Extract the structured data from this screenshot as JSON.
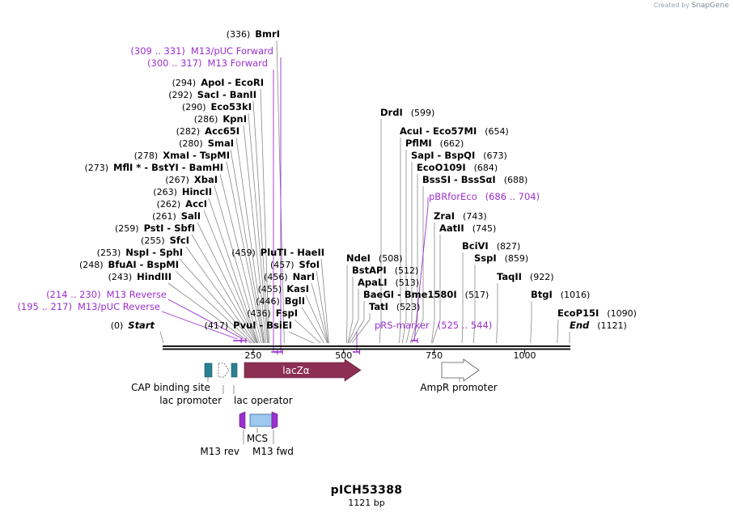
{
  "brand": {
    "created_by": "Created by",
    "name": "SnapGene"
  },
  "plasmid": {
    "name": "pICH53388",
    "length_label": "1121 bp",
    "length": 1121
  },
  "scale": {
    "ticks": [
      250,
      500,
      750,
      1000
    ],
    "tick_labels": [
      "250",
      "500",
      "750",
      "1000"
    ]
  },
  "sites": [
    {
      "id": "start",
      "name": "Start",
      "pos": "(0)",
      "loc": 0,
      "special": true
    },
    {
      "id": "pvui-bsiei",
      "name": "PvuI",
      "name2": "BsiEI",
      "pos": "(417)",
      "loc": 417
    },
    {
      "id": "fspi",
      "name": "FspI",
      "pos": "(436)",
      "loc": 436
    },
    {
      "id": "bgli",
      "name": "BglI",
      "pos": "(446)",
      "loc": 446
    },
    {
      "id": "kasi",
      "name": "KasI",
      "pos": "(455)",
      "loc": 455
    },
    {
      "id": "nari",
      "name": "NarI",
      "pos": "(456)",
      "loc": 456
    },
    {
      "id": "sfoi",
      "name": "SfoI",
      "pos": "(457)",
      "loc": 457
    },
    {
      "id": "plutI-haeii",
      "name": "PluTI",
      "name2": "HaeII",
      "pos": "(459)",
      "loc": 459
    },
    {
      "id": "hindiii",
      "name": "HindIII",
      "pos": "(243)",
      "loc": 243
    },
    {
      "id": "bfuai-bspmi",
      "name": "BfuAI",
      "name2": "BspMI",
      "pos": "(248)",
      "loc": 248
    },
    {
      "id": "nspi-sphi",
      "name": "NspI",
      "name2": "SphI",
      "pos": "(253)",
      "loc": 253
    },
    {
      "id": "sfci",
      "name": "SfcI",
      "pos": "(255)",
      "loc": 255
    },
    {
      "id": "psti-sbfi",
      "name": "PstI",
      "name2": "SbfI",
      "pos": "(259)",
      "loc": 259
    },
    {
      "id": "sali",
      "name": "SalI",
      "pos": "(261)",
      "loc": 261
    },
    {
      "id": "acci",
      "name": "AccI",
      "pos": "(262)",
      "loc": 262
    },
    {
      "id": "hincii",
      "name": "HincII",
      "pos": "(263)",
      "loc": 263
    },
    {
      "id": "xbai",
      "name": "XbaI",
      "pos": "(267)",
      "loc": 267
    },
    {
      "id": "mfli-bstyi-bamhi",
      "name": "MflI *",
      "name2": "BstYI",
      "name3": "BamHI",
      "pos": "(273)",
      "loc": 273
    },
    {
      "id": "xmai-tspmi",
      "name": "XmaI",
      "name2": "TspMI",
      "pos": "(278)",
      "loc": 278
    },
    {
      "id": "smai",
      "name": "SmaI",
      "pos": "(280)",
      "loc": 280
    },
    {
      "id": "acc65i",
      "name": "Acc65I",
      "pos": "(282)",
      "loc": 282
    },
    {
      "id": "kpni",
      "name": "KpnI",
      "pos": "(286)",
      "loc": 286
    },
    {
      "id": "eco53ki",
      "name": "Eco53kI",
      "pos": "(290)",
      "loc": 290
    },
    {
      "id": "saci-banii",
      "name": "SacI",
      "name2": "BanII",
      "pos": "(292)",
      "loc": 292
    },
    {
      "id": "apoi-ecori",
      "name": "ApoI",
      "name2": "EcoRI",
      "pos": "(294)",
      "loc": 294
    },
    {
      "id": "bmri",
      "name": "BmrI",
      "pos": "(336)",
      "loc": 336
    },
    {
      "id": "ndei",
      "name": "NdeI",
      "pos": "(508)",
      "loc": 508
    },
    {
      "id": "bstapi",
      "name": "BstAPI",
      "pos": "(512)",
      "loc": 512
    },
    {
      "id": "apali",
      "name": "ApaLI",
      "pos": "(513)",
      "loc": 513
    },
    {
      "id": "baegi-bme1580i",
      "name": "BaeGI",
      "name2": "Bme1580I",
      "pos": "(517)",
      "loc": 517
    },
    {
      "id": "tati",
      "name": "TatI",
      "pos": "(523)",
      "loc": 523
    },
    {
      "id": "drdi",
      "name": "DrdI",
      "pos": "(599)",
      "loc": 599
    },
    {
      "id": "acui-eco57mi",
      "name": "AcuI",
      "name2": "Eco57MI",
      "pos": "(654)",
      "loc": 654
    },
    {
      "id": "pflmi",
      "name": "PflMI",
      "pos": "(662)",
      "loc": 662
    },
    {
      "id": "sapi-bspqi",
      "name": "SapI",
      "name2": "BspQI",
      "pos": "(673)",
      "loc": 673
    },
    {
      "id": "eco0109i",
      "name": "EcoO109I",
      "pos": "(684)",
      "loc": 684
    },
    {
      "id": "bsssi-bsssai",
      "name": "BssSI",
      "name2": "BssSαI",
      "pos": "(688)",
      "loc": 688
    },
    {
      "id": "zrai",
      "name": "ZraI",
      "pos": "(743)",
      "loc": 743
    },
    {
      "id": "aatii",
      "name": "AatII",
      "pos": "(745)",
      "loc": 745
    },
    {
      "id": "bcivi",
      "name": "BciVI",
      "pos": "(827)",
      "loc": 827
    },
    {
      "id": "sspi",
      "name": "SspI",
      "pos": "(859)",
      "loc": 859
    },
    {
      "id": "taqii",
      "name": "TaqII",
      "pos": "(922)",
      "loc": 922
    },
    {
      "id": "btgi",
      "name": "BtgI",
      "pos": "(1016)",
      "loc": 1016
    },
    {
      "id": "ecop15i",
      "name": "EcoP15I",
      "pos": "(1090)",
      "loc": 1090
    },
    {
      "id": "end",
      "name": "End",
      "pos": "(1121)",
      "loc": 1121,
      "special": true
    }
  ],
  "primers": [
    {
      "id": "m13-puc-forward",
      "name": "M13/pUC Forward",
      "range": "(309 .. 331)",
      "start": 309,
      "end": 331
    },
    {
      "id": "m13-forward",
      "name": "M13 Forward",
      "range": "(300 .. 317)",
      "start": 300,
      "end": 317
    },
    {
      "id": "m13-reverse",
      "name": "M13 Reverse",
      "range": "(214 .. 230)",
      "start": 214,
      "end": 230
    },
    {
      "id": "m13-puc-reverse",
      "name": "M13/pUC Reverse",
      "range": "(195 .. 217)",
      "start": 195,
      "end": 217
    },
    {
      "id": "pbrforeco",
      "name": "pBRforEco",
      "range": "(686 .. 704)",
      "start": 686,
      "end": 704
    },
    {
      "id": "prs-marker",
      "name": "pRS-marker",
      "range": "(525 .. 544)",
      "start": 525,
      "end": 544
    }
  ],
  "features": [
    {
      "id": "cap-binding-site",
      "name": "CAP binding site",
      "color": "#2a7f92"
    },
    {
      "id": "lac-promoter",
      "name": "lac promoter",
      "color": "#ffffff"
    },
    {
      "id": "lac-operator",
      "name": "lac operator",
      "color": "#2a7f92"
    },
    {
      "id": "lacza",
      "name": "lacZα",
      "color": "#8c2f52"
    },
    {
      "id": "ampr-promoter",
      "name": "AmpR promoter",
      "color": "#ffffff"
    },
    {
      "id": "mcs",
      "name": "MCS",
      "color": "#9fc8ef"
    },
    {
      "id": "m13-rev",
      "name": "M13 rev",
      "color": "#9b2fcf"
    },
    {
      "id": "m13-fwd",
      "name": "M13 fwd",
      "color": "#9b2fcf"
    }
  ],
  "colors": {
    "primer": "#9b2fcf",
    "backbone": "#000000",
    "line": "#888888"
  }
}
